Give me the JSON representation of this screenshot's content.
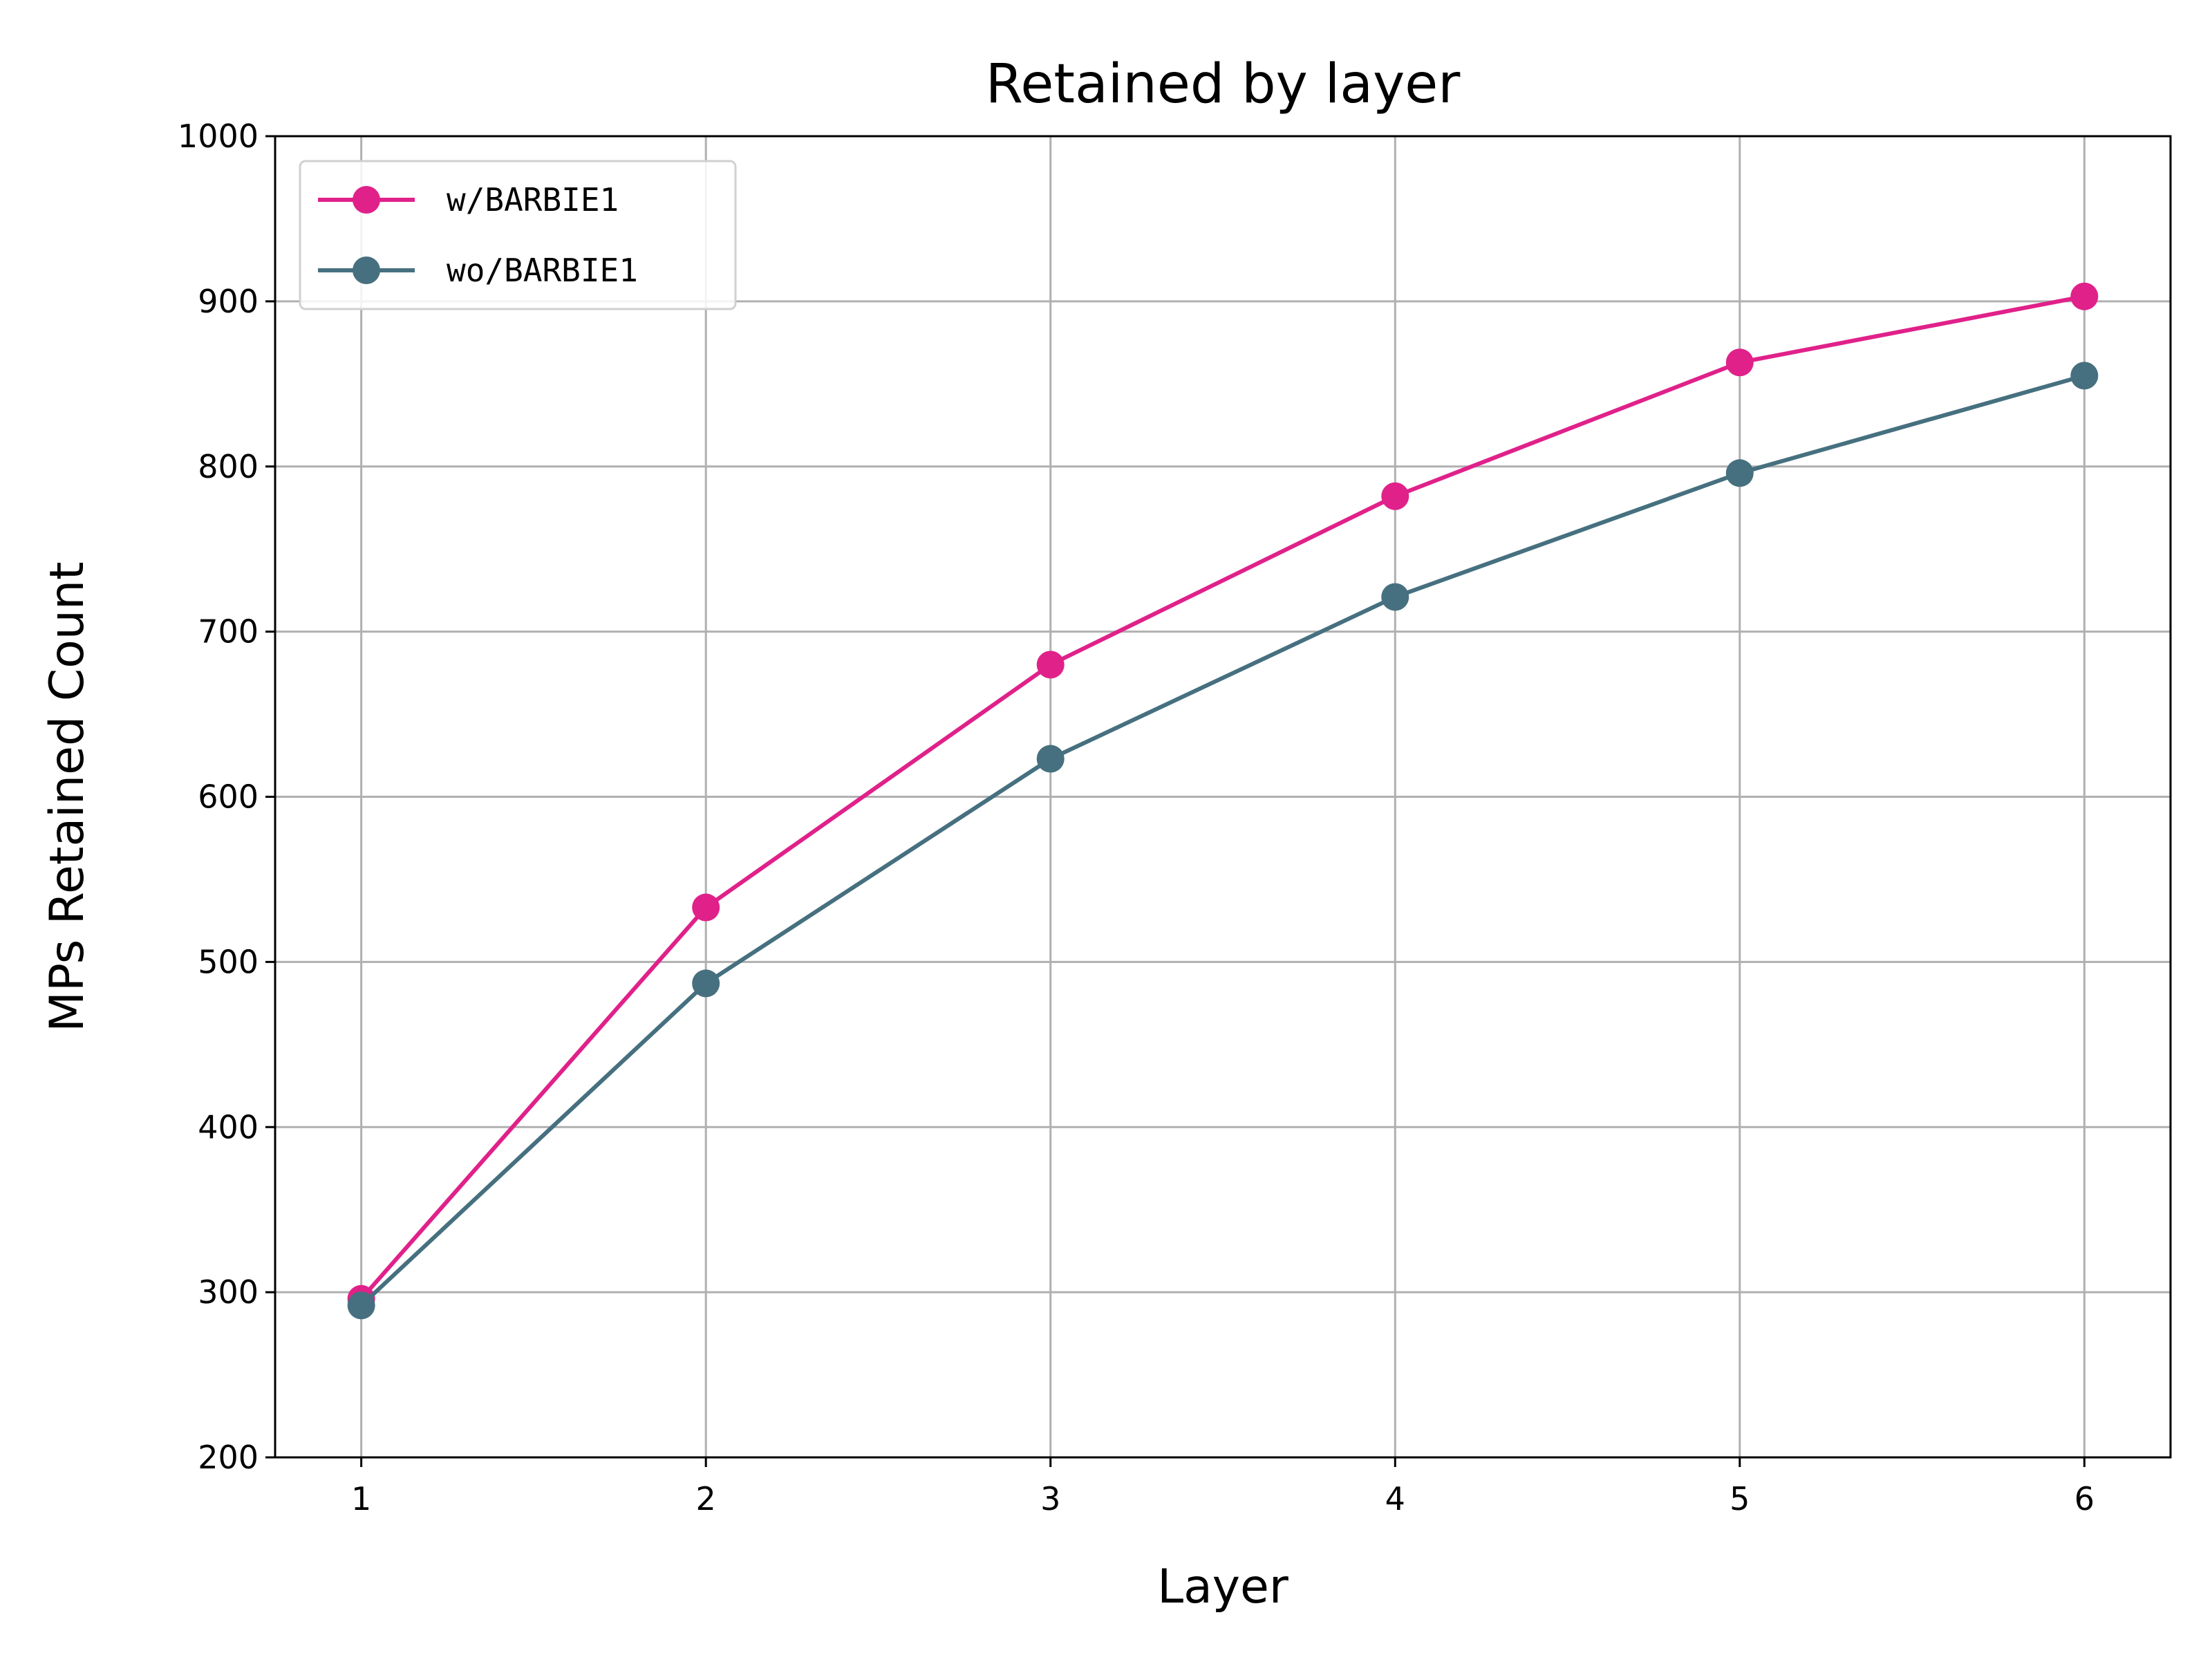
{
  "chart_data": {
    "type": "line",
    "title": "Retained by layer",
    "xlabel": "Layer",
    "ylabel": "MPs Retained Count",
    "x": [
      1,
      2,
      3,
      4,
      5,
      6
    ],
    "xlim": [
      0.75,
      6.25
    ],
    "ylim": [
      200,
      1000
    ],
    "xticks": [
      "1",
      "2",
      "3",
      "4",
      "5",
      "6"
    ],
    "yticks": [
      "200",
      "300",
      "400",
      "500",
      "600",
      "700",
      "800",
      "900",
      "1000"
    ],
    "grid": true,
    "legend_position": "top-left",
    "series": [
      {
        "name": "w/BARBIE1",
        "color": "#e0218a",
        "marker": "circle",
        "values": [
          296,
          533,
          680,
          782,
          863,
          903
        ]
      },
      {
        "name": "wo/BARBIE1",
        "color": "#46707f",
        "marker": "circle",
        "values": [
          292,
          487,
          623,
          721,
          796,
          855
        ]
      }
    ]
  }
}
